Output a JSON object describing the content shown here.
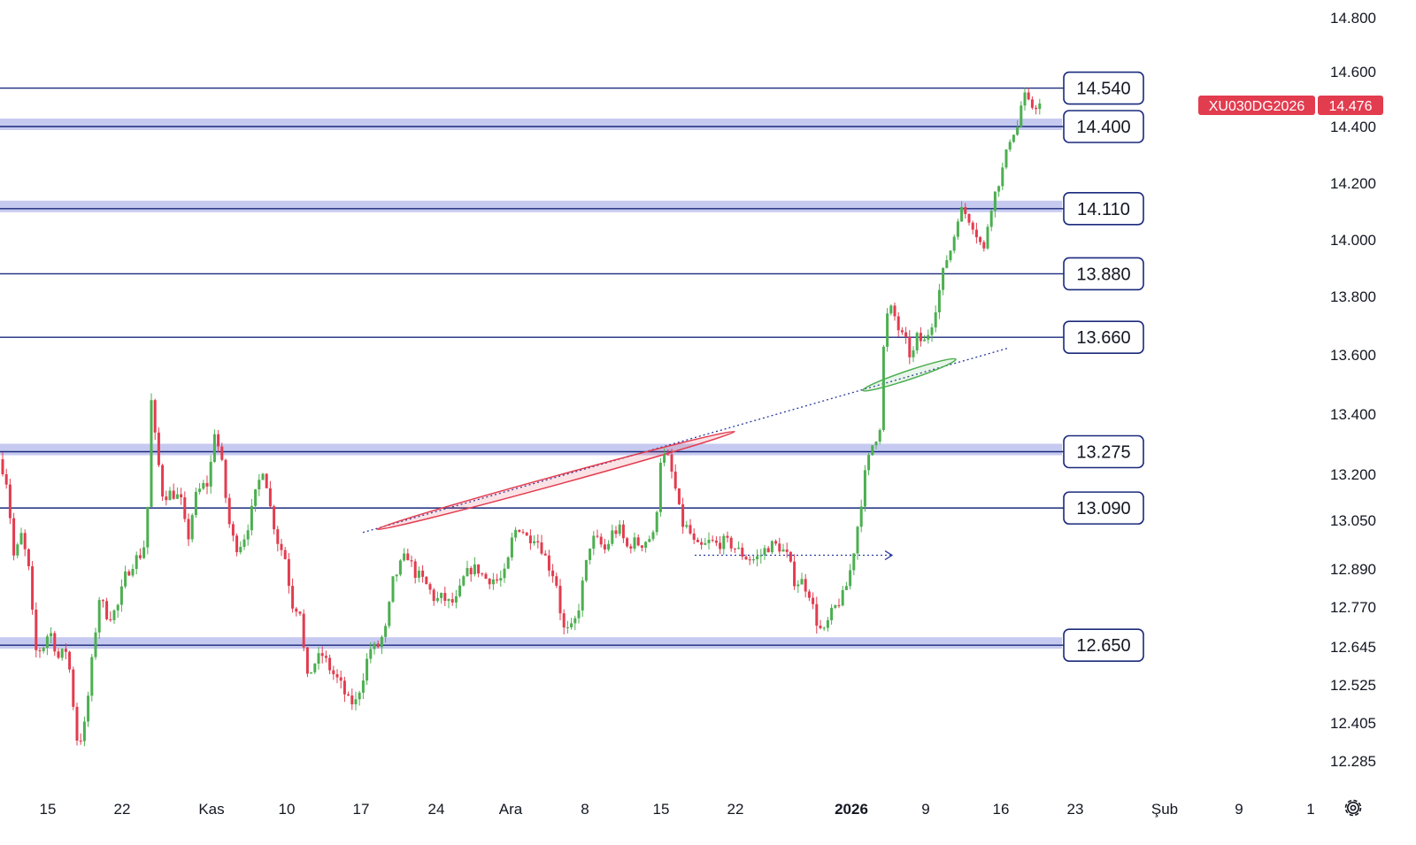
{
  "chart_data": {
    "type": "candlestick",
    "symbol": "XU030DG2026",
    "last_price": 14476,
    "last_price_label": "14.476",
    "ylim": [
      12160,
      14860
    ],
    "price_axis_ticks": [
      {
        "value": 14800,
        "label": "14.800"
      },
      {
        "value": 14600,
        "label": "14.600"
      },
      {
        "value": 14400,
        "label": "14.400"
      },
      {
        "value": 14200,
        "label": "14.200"
      },
      {
        "value": 14000,
        "label": "14.000"
      },
      {
        "value": 13800,
        "label": "13.800"
      },
      {
        "value": 13600,
        "label": "13.600"
      },
      {
        "value": 13400,
        "label": "13.400"
      },
      {
        "value": 13200,
        "label": "13.200"
      },
      {
        "value": 13050,
        "label": "13.050"
      },
      {
        "value": 12890,
        "label": "12.890"
      },
      {
        "value": 12770,
        "label": "12.770"
      },
      {
        "value": 12645,
        "label": "12.645"
      },
      {
        "value": 12525,
        "label": "12.525"
      },
      {
        "value": 12405,
        "label": "12.405"
      },
      {
        "value": 12285,
        "label": "12.285"
      }
    ],
    "x_axis_labels": [
      {
        "label": "15",
        "bold": false
      },
      {
        "label": "22",
        "bold": false
      },
      {
        "label": "Kas",
        "bold": false
      },
      {
        "label": "10",
        "bold": false
      },
      {
        "label": "17",
        "bold": false
      },
      {
        "label": "24",
        "bold": false
      },
      {
        "label": "Ara",
        "bold": false
      },
      {
        "label": "8",
        "bold": false
      },
      {
        "label": "15",
        "bold": false
      },
      {
        "label": "22",
        "bold": false
      },
      {
        "label": "2026",
        "bold": true
      },
      {
        "label": "9",
        "bold": false
      },
      {
        "label": "16",
        "bold": false
      },
      {
        "label": "23",
        "bold": false
      },
      {
        "label": "Şub",
        "bold": false
      },
      {
        "label": "9",
        "bold": false
      },
      {
        "label": "1",
        "bold": false
      }
    ],
    "levels": [
      {
        "value": 14540,
        "label": "14.540",
        "band": false
      },
      {
        "value": 14400,
        "label": "14.400",
        "band": true
      },
      {
        "value": 14110,
        "label": "14.110",
        "band": true
      },
      {
        "value": 13880,
        "label": "13.880",
        "band": false
      },
      {
        "value": 13660,
        "label": "13.660",
        "band": false
      },
      {
        "value": 13275,
        "label": "13.275",
        "band": true
      },
      {
        "value": 13090,
        "label": "13.090",
        "band": false
      },
      {
        "value": 12650,
        "label": "12.650",
        "band": true
      }
    ],
    "path_points": [
      [
        0,
        13250
      ],
      [
        8,
        13170
      ],
      [
        16,
        12920
      ],
      [
        24,
        13000
      ],
      [
        32,
        12900
      ],
      [
        40,
        12630
      ],
      [
        48,
        12640
      ],
      [
        56,
        12700
      ],
      [
        66,
        12610
      ],
      [
        76,
        12640
      ],
      [
        88,
        12330
      ],
      [
        96,
        12400
      ],
      [
        104,
        12600
      ],
      [
        112,
        12800
      ],
      [
        122,
        12740
      ],
      [
        132,
        12760
      ],
      [
        142,
        12870
      ],
      [
        152,
        12920
      ],
      [
        160,
        12940
      ],
      [
        166,
        13000
      ],
      [
        170,
        13470
      ],
      [
        176,
        13300
      ],
      [
        184,
        13130
      ],
      [
        194,
        13140
      ],
      [
        204,
        13120
      ],
      [
        212,
        12980
      ],
      [
        220,
        13120
      ],
      [
        228,
        13160
      ],
      [
        236,
        13170
      ],
      [
        242,
        13350
      ],
      [
        250,
        13250
      ],
      [
        258,
        13050
      ],
      [
        266,
        12960
      ],
      [
        274,
        12980
      ],
      [
        282,
        13050
      ],
      [
        290,
        13150
      ],
      [
        298,
        13230
      ],
      [
        306,
        13080
      ],
      [
        314,
        12980
      ],
      [
        322,
        12930
      ],
      [
        330,
        12780
      ],
      [
        340,
        12760
      ],
      [
        346,
        12530
      ],
      [
        354,
        12590
      ],
      [
        364,
        12620
      ],
      [
        374,
        12570
      ],
      [
        384,
        12530
      ],
      [
        394,
        12470
      ],
      [
        402,
        12470
      ],
      [
        410,
        12550
      ],
      [
        418,
        12640
      ],
      [
        426,
        12640
      ],
      [
        436,
        12700
      ],
      [
        444,
        12850
      ],
      [
        452,
        12900
      ],
      [
        460,
        12940
      ],
      [
        468,
        12880
      ],
      [
        476,
        12860
      ],
      [
        484,
        12830
      ],
      [
        492,
        12790
      ],
      [
        500,
        12800
      ],
      [
        508,
        12780
      ],
      [
        516,
        12790
      ],
      [
        524,
        12860
      ],
      [
        532,
        12890
      ],
      [
        540,
        12890
      ],
      [
        548,
        12860
      ],
      [
        556,
        12860
      ],
      [
        564,
        12850
      ],
      [
        572,
        12880
      ],
      [
        580,
        13010
      ],
      [
        588,
        13030
      ],
      [
        596,
        12990
      ],
      [
        604,
        13000
      ],
      [
        612,
        12960
      ],
      [
        620,
        12900
      ],
      [
        628,
        12860
      ],
      [
        636,
        12700
      ],
      [
        644,
        12690
      ],
      [
        652,
        12740
      ],
      [
        660,
        12870
      ],
      [
        668,
        12990
      ],
      [
        676,
        12980
      ],
      [
        684,
        12950
      ],
      [
        692,
        13010
      ],
      [
        700,
        13020
      ],
      [
        708,
        12960
      ],
      [
        716,
        12980
      ],
      [
        724,
        12970
      ],
      [
        732,
        12990
      ],
      [
        740,
        13000
      ],
      [
        746,
        13250
      ],
      [
        754,
        13260
      ],
      [
        762,
        13170
      ],
      [
        770,
        13040
      ],
      [
        778,
        13020
      ],
      [
        786,
        12960
      ],
      [
        794,
        12960
      ],
      [
        802,
        12980
      ],
      [
        810,
        12970
      ],
      [
        818,
        12980
      ],
      [
        826,
        12970
      ],
      [
        834,
        12950
      ],
      [
        842,
        12930
      ],
      [
        850,
        12920
      ],
      [
        858,
        12930
      ],
      [
        866,
        12960
      ],
      [
        874,
        12970
      ],
      [
        882,
        12960
      ],
      [
        890,
        12930
      ],
      [
        898,
        12850
      ],
      [
        906,
        12850
      ],
      [
        914,
        12820
      ],
      [
        922,
        12730
      ],
      [
        930,
        12680
      ],
      [
        938,
        12740
      ],
      [
        946,
        12780
      ],
      [
        954,
        12810
      ],
      [
        962,
        12900
      ],
      [
        970,
        13050
      ],
      [
        978,
        13210
      ],
      [
        986,
        13300
      ],
      [
        994,
        13350
      ],
      [
        1000,
        13720
      ],
      [
        1008,
        13760
      ],
      [
        1016,
        13680
      ],
      [
        1024,
        13640
      ],
      [
        1030,
        13580
      ],
      [
        1036,
        13660
      ],
      [
        1044,
        13640
      ],
      [
        1052,
        13700
      ],
      [
        1060,
        13800
      ],
      [
        1068,
        13920
      ],
      [
        1076,
        13980
      ],
      [
        1084,
        14110
      ],
      [
        1092,
        14090
      ],
      [
        1100,
        14050
      ],
      [
        1106,
        14000
      ],
      [
        1112,
        13960
      ],
      [
        1118,
        14100
      ],
      [
        1126,
        14180
      ],
      [
        1134,
        14260
      ],
      [
        1142,
        14370
      ],
      [
        1150,
        14400
      ],
      [
        1156,
        14520
      ],
      [
        1164,
        14470
      ],
      [
        1172,
        14480
      ],
      [
        1178,
        14476
      ]
    ],
    "trendline": {
      "x1": 410,
      "y1": 13010,
      "x2": 1138,
      "y2": 13622
    },
    "resistance_ellipse": {
      "x1": 426,
      "y1": 13020,
      "x2": 830,
      "y2": 13342
    },
    "breakout_ellipse": {
      "x1": 975,
      "y1": 13480,
      "x2": 1080,
      "y2": 13585
    },
    "range_arrow": {
      "x1": 785,
      "x2": 1008,
      "value": 12935
    }
  },
  "colors": {
    "up": "#4caf50",
    "down": "#e23c4f",
    "level_line": "#1a2a7c",
    "band": "#c7caf0",
    "symbol_label_bg": "#e23c4f",
    "trendline": "#2a3aa0",
    "ellipse_red": "#e23c4f",
    "ellipse_green": "#4caf50"
  },
  "icons": {
    "settings": "gear-icon"
  }
}
